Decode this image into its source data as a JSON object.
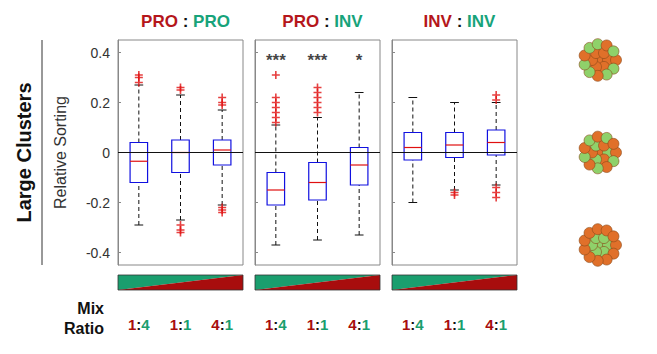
{
  "title": "Large Clusters",
  "chart_data": [
    {
      "type": "boxplot",
      "title": "PRO : PRO",
      "ylabel": "Relative Sorting",
      "xlabel": "Mix Ratio",
      "categories": [
        "1:4",
        "1:1",
        "4:1"
      ],
      "boxes": [
        [
          -0.29,
          -0.12,
          -0.035,
          0.04,
          0.27
        ],
        [
          -0.27,
          -0.08,
          0,
          0.05,
          0.23
        ],
        [
          -0.21,
          -0.05,
          0.01,
          0.05,
          0.17
        ]
      ],
      "outliers": [
        [
          0.28,
          0.3,
          0.31
        ],
        [
          0.25,
          0.26,
          -0.29,
          -0.31,
          -0.32
        ],
        [
          0.19,
          0.2,
          0.22,
          -0.22,
          -0.23,
          -0.24
        ]
      ],
      "reference_line": 0,
      "ylim": [
        -0.45,
        0.45
      ],
      "yticks": [
        -0.4,
        -0.2,
        0,
        0.2,
        0.4
      ]
    },
    {
      "type": "boxplot",
      "title": "PRO : INV",
      "categories": [
        "1:4",
        "1:1",
        "4:1"
      ],
      "boxes": [
        [
          -0.37,
          -0.21,
          -0.15,
          -0.08,
          0.11
        ],
        [
          -0.35,
          -0.19,
          -0.12,
          -0.04,
          0.14
        ],
        [
          -0.33,
          -0.13,
          -0.05,
          0.02,
          0.24
        ]
      ],
      "outliers": [
        [
          0.12,
          0.14,
          0.16,
          0.18,
          0.2,
          0.22,
          0.31
        ],
        [
          0.16,
          0.18,
          0.2,
          0.22,
          0.24,
          0.26
        ],
        []
      ],
      "annotations": [
        {
          "category": "1:4",
          "y": 0.37,
          "text": "***"
        },
        {
          "category": "1:1",
          "y": 0.37,
          "text": "***"
        },
        {
          "category": "4:1",
          "y": 0.37,
          "text": "*"
        }
      ],
      "reference_line": 0,
      "ylim": [
        -0.45,
        0.45
      ],
      "yticks": [
        -0.4,
        -0.2,
        0,
        0.2,
        0.4
      ],
      "tick_labels": "x"
    },
    {
      "type": "boxplot",
      "title": "INV : INV",
      "categories": [
        "1:4",
        "1:1",
        "4:1"
      ],
      "boxes": [
        [
          -0.2,
          -0.03,
          0.02,
          0.08,
          0.22
        ],
        [
          -0.15,
          -0.02,
          0.03,
          0.08,
          0.2
        ],
        [
          -0.13,
          -0.01,
          0.04,
          0.09,
          0.2
        ]
      ],
      "outliers": [
        [],
        [
          -0.16,
          -0.17
        ],
        [
          0.21,
          0.23,
          -0.14,
          -0.16,
          -0.18
        ]
      ],
      "reference_line": 0,
      "ylim": [
        -0.45,
        0.45
      ],
      "yticks": [
        -0.4,
        -0.2,
        0,
        0.2,
        0.4
      ],
      "tick_labels": "x"
    }
  ]
}
